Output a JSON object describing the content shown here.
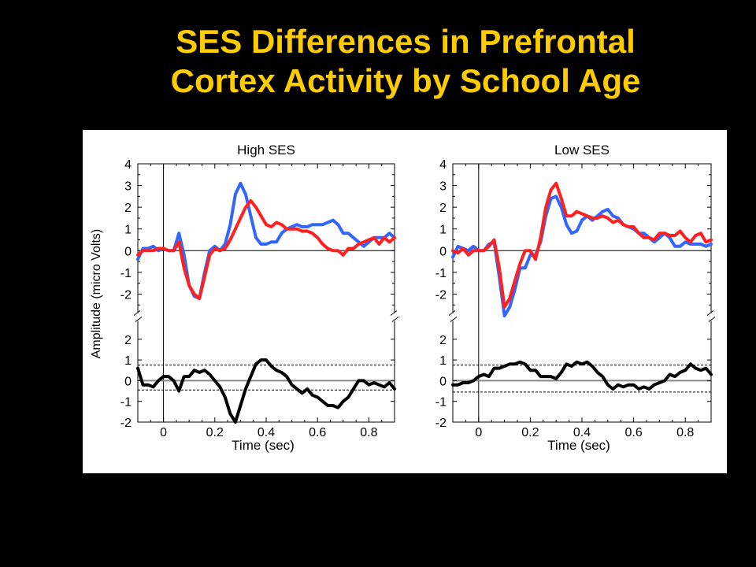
{
  "slide": {
    "title_line1": "SES Differences in Prefrontal",
    "title_line2": "Cortex Activity by School Age"
  },
  "chart_data": {
    "type": "line",
    "ylabel": "Amplitude (micro Volts)",
    "xlabel": "Time (sec)",
    "colors": {
      "series_a": "#3366FF",
      "series_b": "#FF2020",
      "difference": "#000000"
    },
    "panels": [
      {
        "title": "High SES",
        "top_ylim": [
          -2.6,
          4
        ],
        "bottom_ylim": [
          -2,
          2.6
        ],
        "xlim": [
          -0.1,
          0.9
        ],
        "x_ticks": [
          "0",
          "0.2",
          "0.4",
          "0.6",
          "0.8"
        ],
        "top_y_ticks": [
          "4",
          "3",
          "2",
          "1",
          "0",
          "-1",
          "-2"
        ],
        "bottom_y_ticks": [
          "2",
          "1",
          "0",
          "-1",
          "-2"
        ],
        "difference_threshold": [
          0.75,
          -0.45
        ],
        "series": [
          {
            "key": "blue",
            "x": [
              -0.1,
              -0.08,
              -0.06,
              -0.04,
              -0.02,
              0.0,
              0.02,
              0.04,
              0.06,
              0.08,
              0.1,
              0.12,
              0.14,
              0.16,
              0.18,
              0.2,
              0.22,
              0.24,
              0.26,
              0.28,
              0.3,
              0.32,
              0.34,
              0.36,
              0.38,
              0.4,
              0.42,
              0.44,
              0.46,
              0.48,
              0.5,
              0.52,
              0.54,
              0.56,
              0.58,
              0.6,
              0.62,
              0.64,
              0.66,
              0.68,
              0.7,
              0.72,
              0.74,
              0.76,
              0.78,
              0.8,
              0.82,
              0.84,
              0.86,
              0.88,
              0.9
            ],
            "y": [
              -0.4,
              0.1,
              0.1,
              0.2,
              0.0,
              0.1,
              0.0,
              0.0,
              0.8,
              -0.2,
              -1.6,
              -2.1,
              -2.2,
              -1.0,
              0.0,
              0.2,
              0.0,
              0.3,
              1.2,
              2.6,
              3.1,
              2.6,
              1.6,
              0.6,
              0.3,
              0.3,
              0.4,
              0.4,
              0.8,
              1.0,
              1.1,
              1.2,
              1.1,
              1.1,
              1.2,
              1.2,
              1.2,
              1.3,
              1.4,
              1.2,
              0.8,
              0.8,
              0.6,
              0.4,
              0.2,
              0.4,
              0.6,
              0.6,
              0.6,
              0.8,
              0.6
            ]
          },
          {
            "key": "red",
            "x": [
              -0.1,
              -0.08,
              -0.06,
              -0.04,
              -0.02,
              0.0,
              0.02,
              0.04,
              0.06,
              0.08,
              0.1,
              0.12,
              0.14,
              0.16,
              0.18,
              0.2,
              0.22,
              0.24,
              0.26,
              0.28,
              0.3,
              0.32,
              0.34,
              0.36,
              0.38,
              0.4,
              0.42,
              0.44,
              0.46,
              0.48,
              0.5,
              0.52,
              0.54,
              0.56,
              0.58,
              0.6,
              0.62,
              0.64,
              0.66,
              0.68,
              0.7,
              0.72,
              0.74,
              0.76,
              0.78,
              0.8,
              0.82,
              0.84,
              0.86,
              0.88,
              0.9
            ],
            "y": [
              -0.2,
              0.0,
              0.0,
              0.0,
              0.1,
              0.1,
              0.0,
              0.0,
              0.4,
              -0.8,
              -1.6,
              -2.0,
              -2.2,
              -1.2,
              -0.2,
              0.1,
              0.0,
              0.1,
              0.5,
              1.0,
              1.5,
              2.0,
              2.3,
              2.0,
              1.6,
              1.2,
              1.1,
              1.3,
              1.2,
              1.0,
              1.0,
              1.0,
              0.9,
              0.9,
              0.8,
              0.6,
              0.3,
              0.1,
              0.0,
              0.0,
              -0.2,
              0.1,
              0.1,
              0.3,
              0.4,
              0.5,
              0.6,
              0.3,
              0.6,
              0.4,
              0.6
            ]
          }
        ],
        "difference": {
          "x": [
            -0.1,
            -0.08,
            -0.06,
            -0.04,
            -0.02,
            0.0,
            0.02,
            0.04,
            0.06,
            0.08,
            0.1,
            0.12,
            0.14,
            0.16,
            0.18,
            0.2,
            0.22,
            0.24,
            0.26,
            0.28,
            0.3,
            0.32,
            0.34,
            0.36,
            0.38,
            0.4,
            0.42,
            0.44,
            0.46,
            0.48,
            0.5,
            0.52,
            0.54,
            0.56,
            0.58,
            0.6,
            0.62,
            0.64,
            0.66,
            0.68,
            0.7,
            0.72,
            0.74,
            0.76,
            0.78,
            0.8,
            0.82,
            0.84,
            0.86,
            0.88,
            0.9
          ],
          "y": [
            0.6,
            -0.2,
            -0.2,
            -0.3,
            0.0,
            0.2,
            0.2,
            0.0,
            -0.5,
            0.2,
            0.2,
            0.5,
            0.4,
            0.5,
            0.3,
            0.0,
            -0.3,
            -0.8,
            -1.6,
            -2.0,
            -1.2,
            -0.4,
            0.2,
            0.8,
            1.0,
            1.0,
            0.7,
            0.5,
            0.4,
            0.2,
            -0.2,
            -0.4,
            -0.6,
            -0.4,
            -0.7,
            -0.8,
            -1.0,
            -1.2,
            -1.2,
            -1.3,
            -1.0,
            -0.8,
            -0.4,
            0.0,
            0.0,
            -0.2,
            -0.1,
            -0.2,
            -0.3,
            -0.1,
            -0.4
          ]
        }
      },
      {
        "title": "Low SES",
        "top_ylim": [
          -2.6,
          4
        ],
        "bottom_ylim": [
          -2,
          2.6
        ],
        "xlim": [
          -0.1,
          0.9
        ],
        "x_ticks": [
          "0",
          "0.2",
          "0.4",
          "0.6",
          "0.8"
        ],
        "top_y_ticks": [
          "4",
          "3",
          "2",
          "1",
          "0",
          "-1",
          "-2"
        ],
        "bottom_y_ticks": [
          "2",
          "1",
          "0",
          "-1",
          "-2"
        ],
        "difference_threshold": [
          0.75,
          -0.55
        ],
        "series": [
          {
            "key": "blue",
            "x": [
              -0.1,
              -0.08,
              -0.06,
              -0.04,
              -0.02,
              0.0,
              0.02,
              0.04,
              0.06,
              0.08,
              0.1,
              0.12,
              0.14,
              0.16,
              0.18,
              0.2,
              0.22,
              0.24,
              0.26,
              0.28,
              0.3,
              0.32,
              0.34,
              0.36,
              0.38,
              0.4,
              0.42,
              0.44,
              0.46,
              0.48,
              0.5,
              0.52,
              0.54,
              0.56,
              0.58,
              0.6,
              0.62,
              0.64,
              0.66,
              0.68,
              0.7,
              0.72,
              0.74,
              0.76,
              0.78,
              0.8,
              0.82,
              0.84,
              0.86,
              0.88,
              0.9
            ],
            "y": [
              -0.3,
              0.2,
              0.1,
              0.0,
              0.2,
              0.0,
              0.0,
              0.3,
              0.4,
              -1.2,
              -3.0,
              -2.6,
              -1.8,
              -0.8,
              -0.8,
              -0.2,
              -0.2,
              0.4,
              1.6,
              2.4,
              2.5,
              2.0,
              1.2,
              0.8,
              0.9,
              1.4,
              1.6,
              1.4,
              1.6,
              1.8,
              1.9,
              1.6,
              1.5,
              1.2,
              1.1,
              1.0,
              0.8,
              0.8,
              0.6,
              0.4,
              0.6,
              0.8,
              0.6,
              0.2,
              0.2,
              0.4,
              0.3,
              0.3,
              0.3,
              0.2,
              0.3
            ]
          },
          {
            "key": "red",
            "x": [
              -0.1,
              -0.08,
              -0.06,
              -0.04,
              -0.02,
              0.0,
              0.02,
              0.04,
              0.06,
              0.08,
              0.1,
              0.12,
              0.14,
              0.16,
              0.18,
              0.2,
              0.22,
              0.24,
              0.26,
              0.28,
              0.3,
              0.32,
              0.34,
              0.36,
              0.38,
              0.4,
              0.42,
              0.44,
              0.46,
              0.48,
              0.5,
              0.52,
              0.54,
              0.56,
              0.58,
              0.6,
              0.62,
              0.64,
              0.66,
              0.68,
              0.7,
              0.72,
              0.74,
              0.76,
              0.78,
              0.8,
              0.82,
              0.84,
              0.86,
              0.88,
              0.9
            ],
            "y": [
              0.0,
              -0.1,
              0.1,
              -0.2,
              0.0,
              0.0,
              0.0,
              0.2,
              0.5,
              -0.8,
              -2.6,
              -2.2,
              -1.4,
              -0.6,
              0.0,
              0.0,
              -0.4,
              0.6,
              2.0,
              2.8,
              3.1,
              2.4,
              1.6,
              1.6,
              1.8,
              1.7,
              1.6,
              1.5,
              1.5,
              1.6,
              1.5,
              1.3,
              1.4,
              1.2,
              1.1,
              1.1,
              0.8,
              0.6,
              0.6,
              0.5,
              0.8,
              0.8,
              0.7,
              0.7,
              0.9,
              0.6,
              0.4,
              0.7,
              0.8,
              0.4,
              0.5
            ]
          }
        ],
        "difference": {
          "x": [
            -0.1,
            -0.08,
            -0.06,
            -0.04,
            -0.02,
            0.0,
            0.02,
            0.04,
            0.06,
            0.08,
            0.1,
            0.12,
            0.14,
            0.16,
            0.18,
            0.2,
            0.22,
            0.24,
            0.26,
            0.28,
            0.3,
            0.32,
            0.34,
            0.36,
            0.38,
            0.4,
            0.42,
            0.44,
            0.46,
            0.48,
            0.5,
            0.52,
            0.54,
            0.56,
            0.58,
            0.6,
            0.62,
            0.64,
            0.66,
            0.68,
            0.7,
            0.72,
            0.74,
            0.76,
            0.78,
            0.8,
            0.82,
            0.84,
            0.86,
            0.88,
            0.9
          ],
          "y": [
            -0.2,
            -0.2,
            -0.1,
            -0.1,
            0.0,
            0.2,
            0.3,
            0.2,
            0.6,
            0.6,
            0.7,
            0.8,
            0.8,
            0.9,
            0.8,
            0.5,
            0.5,
            0.2,
            0.2,
            0.2,
            0.1,
            0.4,
            0.8,
            0.7,
            0.9,
            0.8,
            0.9,
            0.7,
            0.4,
            0.2,
            -0.2,
            -0.4,
            -0.2,
            -0.3,
            -0.2,
            -0.2,
            -0.4,
            -0.3,
            -0.4,
            -0.2,
            -0.1,
            0.0,
            0.3,
            0.2,
            0.4,
            0.5,
            0.8,
            0.6,
            0.5,
            0.6,
            0.3
          ]
        }
      }
    ]
  }
}
